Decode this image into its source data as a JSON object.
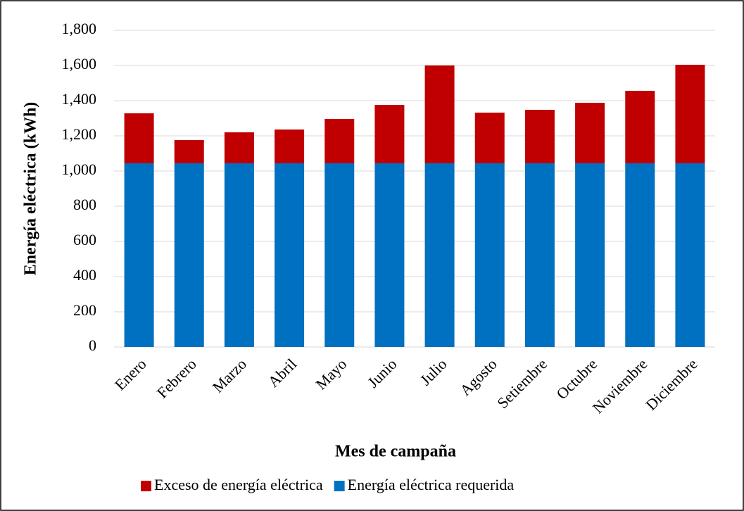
{
  "chart_data": {
    "type": "stacked_bar",
    "x_label": "Mes de campaña",
    "y_label": "Energía eléctrica  (kWh)",
    "categories": [
      "Enero",
      "Febrero",
      "Marzo",
      "Abril",
      "Mayo",
      "Junio",
      "Julio",
      "Agosto",
      "Setiembre",
      "Octubre",
      "Noviembre",
      "Diciembre"
    ],
    "series": [
      {
        "name": "Exceso de energía eléctrica",
        "color": "#c00000",
        "values": [
          284,
          132,
          176,
          192,
          252,
          332,
          556,
          288,
          304,
          344,
          412,
          560
        ]
      },
      {
        "name": "Energía eléctrica requerida",
        "color": "#0070c0",
        "values": [
          1044,
          1044,
          1044,
          1044,
          1044,
          1044,
          1044,
          1044,
          1044,
          1044,
          1044,
          1044
        ]
      }
    ],
    "ylim": [
      0,
      1800
    ],
    "yticks": [
      0,
      200,
      400,
      600,
      800,
      {
        "value": 1000,
        "label": "1,000"
      },
      {
        "value": 1200,
        "label": "1,200"
      },
      {
        "value": 1400,
        "label": "1,400"
      },
      {
        "value": 1600,
        "label": "1,600"
      },
      {
        "value": 1800,
        "label": "1,800"
      }
    ],
    "grid": true,
    "legend": "bottom"
  }
}
